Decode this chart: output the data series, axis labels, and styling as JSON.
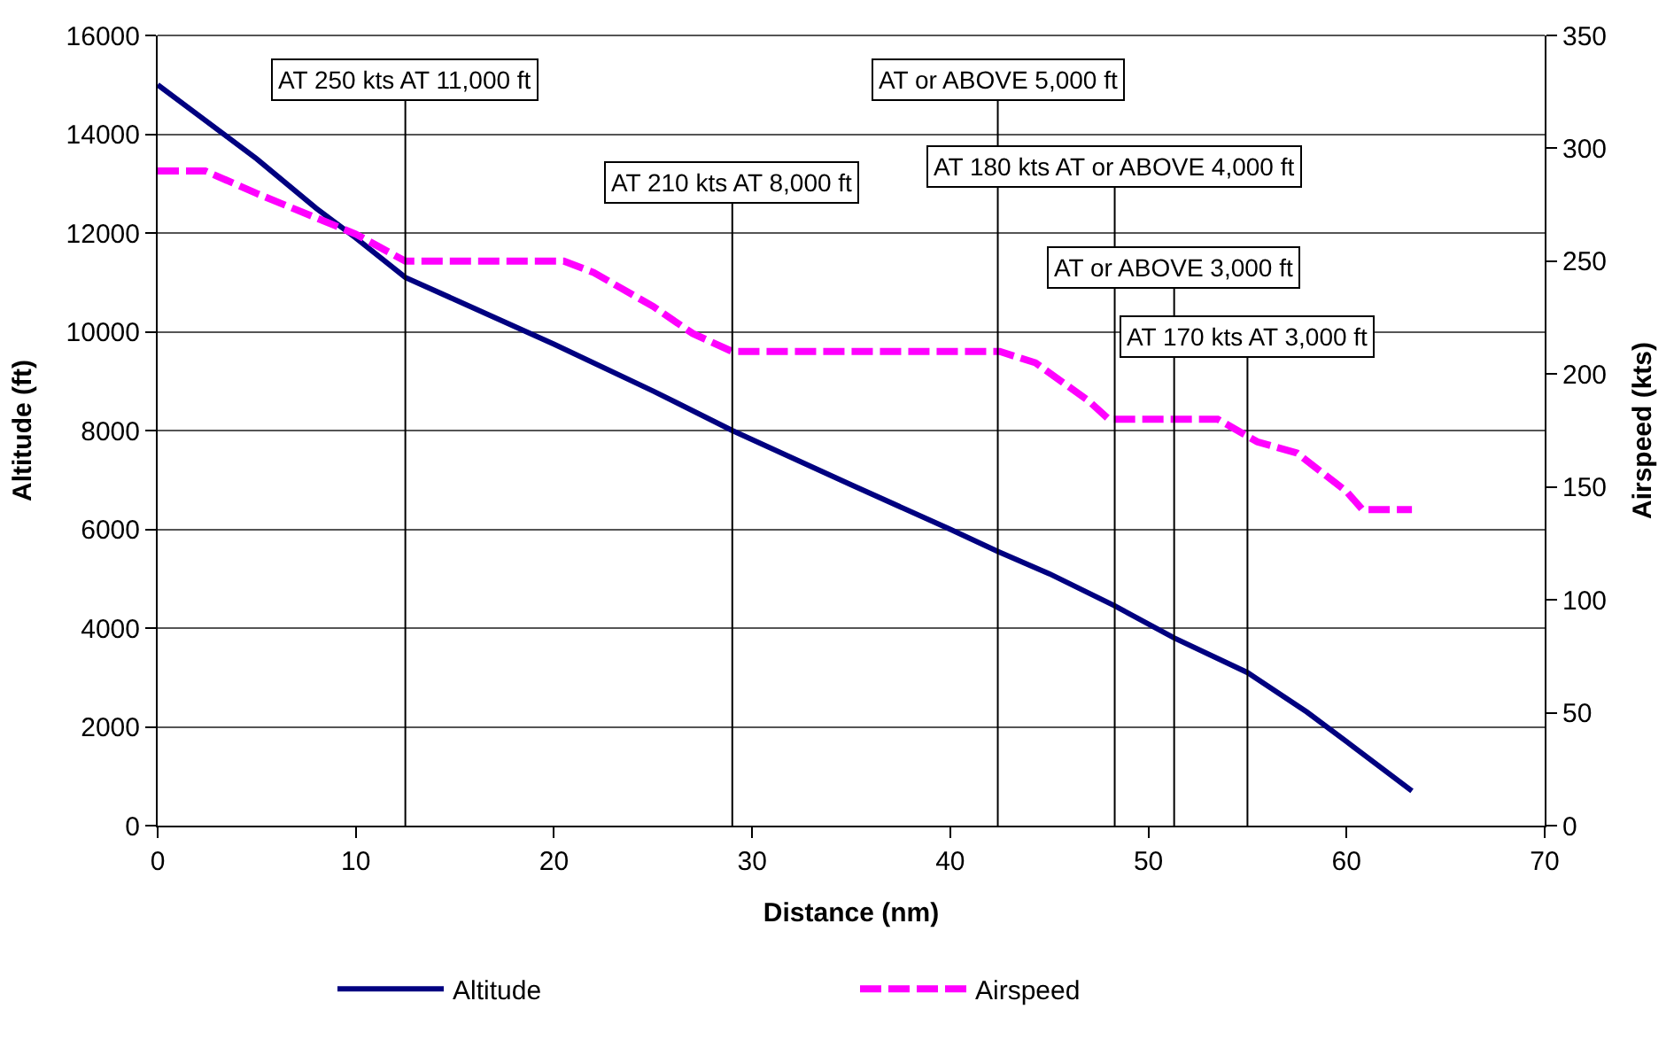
{
  "chart_data": {
    "type": "line",
    "xlabel": "Distance (nm)",
    "ylabel": "Altitude (ft)",
    "y2label": "Airspeed (kts)",
    "xlim": [
      0,
      70
    ],
    "xticks": [
      0,
      10,
      20,
      30,
      40,
      50,
      60,
      70
    ],
    "ylim": [
      0,
      16000
    ],
    "yticks": [
      0,
      2000,
      4000,
      6000,
      8000,
      10000,
      12000,
      14000,
      16000
    ],
    "y2lim": [
      0,
      350
    ],
    "y2ticks": [
      0,
      50,
      100,
      150,
      200,
      250,
      300,
      350
    ],
    "grid": "y",
    "legend": "bottom",
    "marker": "none",
    "series": [
      {
        "name": "Altitude",
        "color": "#000080",
        "line_style": "solid",
        "x": [
          0,
          2,
          5,
          8,
          10,
          12.5,
          15,
          20,
          25,
          29,
          35,
          40,
          42.4,
          45,
          48.3,
          51.3,
          55,
          58,
          60,
          63.3
        ],
        "values": [
          15000,
          14400,
          13500,
          12500,
          11900,
          11100,
          10650,
          9750,
          8800,
          8000,
          6900,
          6000,
          5550,
          5100,
          4450,
          3800,
          3100,
          2300,
          1700,
          700
        ]
      },
      {
        "name": "Airspeed",
        "color": "#ff00ff",
        "line_style": "dashed",
        "axis": "y2",
        "x": [
          0,
          2.4,
          5,
          10,
          12.5,
          20.5,
          22,
          25,
          27,
          29,
          42.5,
          44.3,
          47,
          48,
          53.5,
          55.5,
          57.5,
          60,
          60.8,
          63.3
        ],
        "values": [
          290,
          290,
          280,
          262,
          250,
          250,
          245,
          230,
          218,
          210,
          210,
          205,
          188,
          180,
          180,
          170,
          165,
          148,
          140,
          140
        ]
      }
    ],
    "ref_lines": [
      {
        "axis": "x",
        "value": 12.5,
        "label": "AT 250 kts AT 11,000 ft"
      },
      {
        "axis": "x",
        "value": 29,
        "label": "AT 210 kts AT 8,000 ft"
      },
      {
        "axis": "x",
        "value": 42.4,
        "label": "AT or ABOVE 5,000 ft"
      },
      {
        "axis": "x",
        "value": 48.3,
        "label": "AT 180 kts AT or ABOVE 4,000 ft"
      },
      {
        "axis": "x",
        "value": 51.3,
        "label": "AT or ABOVE 3,000 ft"
      },
      {
        "axis": "x",
        "value": 55,
        "label": "AT 170 kts AT 3,000 ft"
      }
    ]
  }
}
